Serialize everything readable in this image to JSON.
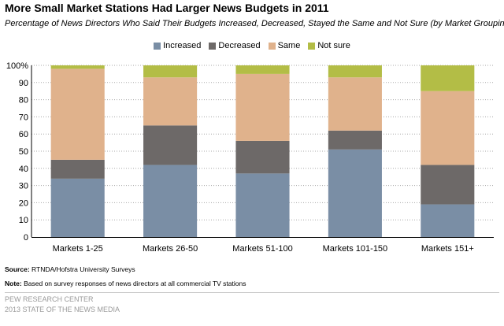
{
  "title": "More Small Market Stations Had Larger News Budgets in 2011",
  "subtitle": "Percentage of News Directors Who Said Their Budgets Increased, Decreased, Stayed the Same and Not Sure (by Market Grouping)",
  "legend": [
    {
      "label": "Increased",
      "color": "#7a8ea5"
    },
    {
      "label": "Decreased",
      "color": "#6d6968"
    },
    {
      "label": "Same",
      "color": "#e0b28c"
    },
    {
      "label": "Not sure",
      "color": "#b3bd46"
    }
  ],
  "footer": {
    "source_label": "Source:",
    "source_text": "RTNDA/Hofstra University Surveys",
    "note_label": "Note:",
    "note_text": "Based on survey responses of news directors at all commercial TV stations",
    "pew": "PEW RESEARCH CENTER",
    "report": "2013 STATE OF THE NEWS MEDIA"
  },
  "chart_data": {
    "type": "bar",
    "stacked": true,
    "title": "More Small Market Stations Had Larger News Budgets in 2011",
    "subtitle": "Percentage of News Directors Who Said Their Budgets Increased, Decreased, Stayed the Same and Not Sure (by Market Grouping)",
    "categories": [
      "Markets 1-25",
      "Markets 26-50",
      "Markets 51-100",
      "Markets 101-150",
      "Markets 151+"
    ],
    "series": [
      {
        "name": "Increased",
        "color": "#7a8ea5",
        "values": [
          34,
          42,
          37,
          51,
          19
        ]
      },
      {
        "name": "Decreased",
        "color": "#6d6968",
        "values": [
          11,
          23,
          19,
          11,
          23
        ]
      },
      {
        "name": "Same",
        "color": "#e0b28c",
        "values": [
          53,
          28,
          39,
          31,
          43
        ]
      },
      {
        "name": "Not sure",
        "color": "#b3bd46",
        "values": [
          2,
          7,
          5,
          7,
          15
        ]
      }
    ],
    "y_ticks": [
      "0",
      "10",
      "20",
      "30",
      "40",
      "50",
      "60",
      "70",
      "80",
      "90",
      "100%"
    ],
    "ylim": [
      0,
      100
    ],
    "grid": true,
    "legend_position": "top"
  }
}
